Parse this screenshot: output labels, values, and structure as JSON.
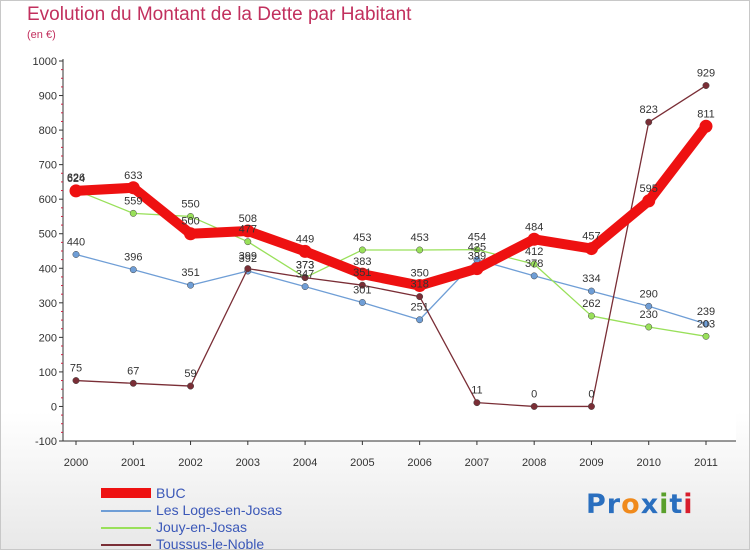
{
  "header": {
    "title": "Evolution du Montant de la Dette par Habitant",
    "subtitle": "(en €)"
  },
  "brand": {
    "letters": [
      "P",
      "r",
      "o",
      "x",
      "i",
      "t",
      "i"
    ],
    "colors": [
      "#2a6fbf",
      "#2a6fbf",
      "#f08a1c",
      "#2a6fbf",
      "#5aa02c",
      "#2a6fbf",
      "#d81e2c"
    ]
  },
  "chart_data": {
    "type": "line",
    "title": "Evolution du Montant de la Dette par Habitant",
    "subtitle": "(en €)",
    "xlabel": "",
    "ylabel": "",
    "x": [
      "2000",
      "2001",
      "2002",
      "2003",
      "2004",
      "2005",
      "2006",
      "2007",
      "2008",
      "2009",
      "2010",
      "2011"
    ],
    "ylim": [
      -100,
      1000
    ],
    "yticks": [
      -100,
      0,
      100,
      200,
      300,
      400,
      500,
      600,
      700,
      800,
      900,
      1000
    ],
    "grid": false,
    "legend_position": "bottom-left",
    "series": [
      {
        "name": "Les Loges-en-Josas",
        "color": "#6f9ed6",
        "values": [
          440,
          396,
          351,
          392,
          347,
          301,
          251,
          425,
          378,
          334,
          290,
          239
        ]
      },
      {
        "name": "Jouy-en-Josas",
        "color": "#99e05a",
        "values": [
          626,
          559,
          550,
          477,
          373,
          453,
          453,
          454,
          412,
          262,
          230,
          203
        ]
      },
      {
        "name": "Toussus-le-Noble",
        "color": "#7a2e36",
        "values": [
          75,
          67,
          59,
          399,
          373,
          351,
          318,
          11,
          0,
          0,
          823,
          929
        ]
      },
      {
        "name": "BUC",
        "color": "#ee1111",
        "values": [
          624,
          633,
          500,
          508,
          449,
          383,
          350,
          399,
          484,
          457,
          595,
          811
        ]
      }
    ],
    "data_labels": [
      {
        "series": "BUC",
        "labels": [
          "624",
          "633",
          "500",
          "508",
          "449",
          "383",
          "350",
          "399",
          "484",
          "457",
          "595",
          "811"
        ]
      },
      {
        "series": "Les Loges-en-Josas",
        "labels": [
          "440",
          "396",
          "351",
          "392",
          "347",
          "301",
          "251",
          "425",
          "378",
          "334",
          "290",
          "239"
        ]
      },
      {
        "series": "Jouy-en-Josas",
        "labels": [
          "626",
          "559",
          "550",
          "477",
          "373",
          "453",
          "453",
          "454",
          "412",
          "262",
          "230",
          "203"
        ]
      },
      {
        "series": "Toussus-le-Noble",
        "labels": [
          "75",
          "67",
          "59",
          "399",
          "373",
          "351",
          "318",
          "11",
          "0",
          "0",
          "823",
          "929"
        ]
      }
    ]
  },
  "legend": {
    "items": [
      {
        "label": "BUC",
        "color": "#ee1111",
        "weight": "thick"
      },
      {
        "label": "Les Loges-en-Josas",
        "color": "#6f9ed6",
        "weight": "thin"
      },
      {
        "label": "Jouy-en-Josas",
        "color": "#99e05a",
        "weight": "thin"
      },
      {
        "label": "Toussus-le-Noble",
        "color": "#7a2e36",
        "weight": "thin"
      }
    ]
  }
}
